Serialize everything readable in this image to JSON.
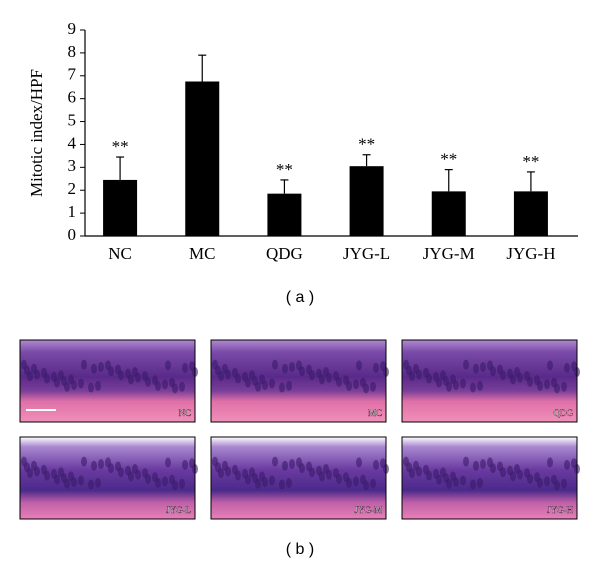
{
  "chart_data": {
    "type": "bar",
    "ylabel": "Mitotic index/HPF",
    "categories": [
      "NC",
      "MC",
      "QDG",
      "JYG-L",
      "JYG-M",
      "JYG-H"
    ],
    "values": [
      2.45,
      6.75,
      1.85,
      3.05,
      1.95,
      1.95
    ],
    "errors": [
      1.0,
      1.15,
      0.6,
      0.5,
      0.95,
      0.85
    ],
    "annotations": [
      "**",
      null,
      "**",
      "**",
      "**",
      "**"
    ],
    "color": "#000000",
    "ylim": [
      0,
      9
    ],
    "yticks": [
      0,
      1,
      2,
      3,
      4,
      5,
      6,
      7,
      8,
      9
    ],
    "grid": false
  },
  "panel_a_label": "( a )",
  "panel_b": {
    "label": "( b )",
    "images": [
      "NC",
      "MC",
      "QDG",
      "JYG-L",
      "JYG-M",
      "JYG-H"
    ]
  }
}
